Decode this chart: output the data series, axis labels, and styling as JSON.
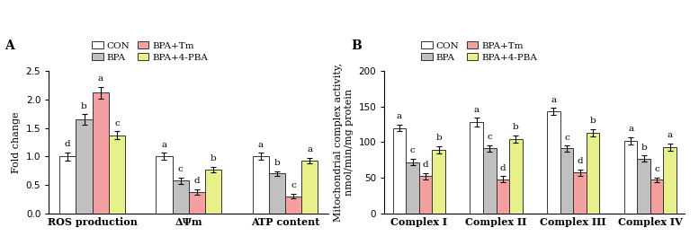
{
  "panel_A": {
    "title": "A",
    "ylabel": "Fold change",
    "ylim": [
      0,
      2.5
    ],
    "yticks": [
      0.0,
      0.5,
      1.0,
      1.5,
      2.0,
      2.5
    ],
    "groups": [
      "ROS production",
      "ΔΨm",
      "ATP content"
    ],
    "bar_data": {
      "CON": [
        1.0,
        1.0,
        1.0
      ],
      "BPA": [
        1.65,
        0.57,
        0.7
      ],
      "BPA+Tm": [
        2.12,
        0.37,
        0.3
      ],
      "BPA+4-PBA": [
        1.37,
        0.77,
        0.92
      ]
    },
    "bar_errors": {
      "CON": [
        0.07,
        0.06,
        0.06
      ],
      "BPA": [
        0.09,
        0.05,
        0.04
      ],
      "BPA+Tm": [
        0.1,
        0.05,
        0.04
      ],
      "BPA+4-PBA": [
        0.07,
        0.05,
        0.05
      ]
    },
    "letters": {
      "CON": [
        "d",
        "a",
        "a"
      ],
      "BPA": [
        "b",
        "c",
        "b"
      ],
      "BPA+Tm": [
        "a",
        "d",
        "c"
      ],
      "BPA+4-PBA": [
        "c",
        "b",
        "a"
      ]
    }
  },
  "panel_B": {
    "title": "B",
    "ylabel": "Mitochondrial complex activity,\nnmol/min/mg protein",
    "ylim": [
      0,
      200
    ],
    "yticks": [
      0,
      50,
      100,
      150,
      200
    ],
    "groups": [
      "Complex I",
      "Complex II",
      "Complex III",
      "Complex IV"
    ],
    "bar_data": {
      "CON": [
        120,
        128,
        143,
        102
      ],
      "BPA": [
        72,
        91,
        91,
        77
      ],
      "BPA+Tm": [
        52,
        48,
        57,
        47
      ],
      "BPA+4-PBA": [
        89,
        104,
        113,
        93
      ]
    },
    "bar_errors": {
      "CON": [
        5,
        6,
        5,
        5
      ],
      "BPA": [
        5,
        5,
        4,
        4
      ],
      "BPA+Tm": [
        4,
        4,
        4,
        3
      ],
      "BPA+4-PBA": [
        5,
        5,
        5,
        5
      ]
    },
    "letters": {
      "CON": [
        "a",
        "a",
        "a",
        "a"
      ],
      "BPA": [
        "c",
        "c",
        "c",
        "b"
      ],
      "BPA+Tm": [
        "d",
        "d",
        "d",
        "c"
      ],
      "BPA+4-PBA": [
        "b",
        "b",
        "b",
        "a"
      ]
    }
  },
  "legend_labels": [
    "CON",
    "BPA",
    "BPA+Tm",
    "BPA+4-PBA"
  ],
  "legend_colors": [
    "#FFFFFF",
    "#C0C0C0",
    "#F4A0A0",
    "#E8F08A"
  ],
  "bar_width": 0.17,
  "edge_color": "#333333",
  "letter_fontsize": 7.5,
  "axis_label_fontsize": 8,
  "tick_fontsize": 7.5,
  "legend_fontsize": 7.5,
  "panel_label_fontsize": 10
}
